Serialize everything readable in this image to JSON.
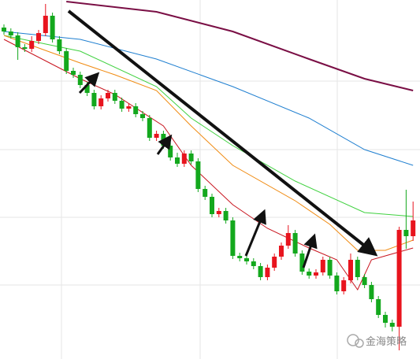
{
  "chart_data": {
    "type": "candlestick",
    "watermark": "金海策略",
    "ylim": [
      0,
      456
    ],
    "up_color": "#e8141e",
    "down_color": "#13a81d",
    "open": [
      421,
      416,
      411,
      396,
      394,
      404,
      414,
      436,
      406,
      391,
      366,
      361,
      348,
      338,
      321,
      331,
      338,
      328,
      318,
      321,
      311,
      306,
      281,
      286,
      271,
      256,
      248,
      261,
      251,
      216,
      206,
      184,
      188,
      176,
      131,
      128,
      124,
      118,
      104,
      116,
      130,
      144,
      160,
      134,
      111,
      106,
      110,
      126,
      106,
      86,
      100,
      126,
      104,
      94,
      76,
      56,
      46,
      41,
      164,
      156
    ],
    "high": [
      425,
      420,
      415,
      400,
      410,
      418,
      451,
      440,
      410,
      395,
      370,
      365,
      352,
      342,
      335,
      342,
      342,
      332,
      325,
      325,
      315,
      310,
      290,
      290,
      275,
      262,
      265,
      265,
      255,
      220,
      210,
      192,
      192,
      180,
      135,
      132,
      128,
      122,
      120,
      134,
      148,
      170,
      164,
      138,
      115,
      114,
      130,
      130,
      110,
      104,
      134,
      130,
      108,
      98,
      80,
      60,
      50,
      168,
      215,
      200
    ],
    "low": [
      412,
      407,
      380,
      390,
      390,
      400,
      410,
      402,
      387,
      362,
      357,
      344,
      334,
      317,
      317,
      327,
      324,
      314,
      314,
      307,
      302,
      277,
      277,
      267,
      252,
      244,
      244,
      247,
      212,
      202,
      180,
      180,
      172,
      127,
      124,
      120,
      114,
      100,
      100,
      112,
      126,
      140,
      130,
      107,
      102,
      102,
      106,
      102,
      82,
      82,
      96,
      100,
      90,
      72,
      52,
      40,
      35,
      11,
      140,
      150
    ],
    "close": [
      416,
      411,
      396,
      394,
      404,
      414,
      436,
      406,
      391,
      366,
      361,
      348,
      338,
      321,
      331,
      338,
      328,
      318,
      321,
      311,
      306,
      281,
      286,
      271,
      256,
      248,
      261,
      251,
      216,
      206,
      184,
      188,
      176,
      131,
      128,
      124,
      118,
      104,
      116,
      130,
      144,
      160,
      134,
      111,
      106,
      110,
      126,
      106,
      86,
      100,
      126,
      104,
      94,
      76,
      56,
      46,
      41,
      164,
      156,
      176
    ],
    "moving_averages": [
      {
        "color": "#7a0f45",
        "x": [
          9,
          22,
          33,
          44,
          52,
          59
        ],
        "values": [
          454,
          441,
          416,
          381,
          356,
          341
        ]
      },
      {
        "color": "#1f7fd0",
        "x": [
          0,
          11,
          22,
          33,
          44,
          52,
          59
        ],
        "values": [
          416,
          406,
          381,
          346,
          306,
          266,
          246
        ]
      },
      {
        "color": "#3fd13f",
        "x": [
          0,
          11,
          22,
          27,
          33,
          42,
          52,
          59
        ],
        "values": [
          411,
          391,
          346,
          306,
          271,
          226,
          186,
          181
        ]
      },
      {
        "color": "#f08a10",
        "x": [
          0,
          11,
          16,
          22,
          27,
          33,
          42,
          47,
          51,
          55,
          59
        ],
        "values": [
          411,
          376,
          361,
          341,
          296,
          246,
          201,
          171,
          138,
          138,
          151
        ]
      },
      {
        "color": "#c8141e",
        "x": [
          0,
          11,
          16,
          23,
          27,
          33,
          38,
          44,
          48,
          51,
          53,
          59
        ],
        "values": [
          406,
          356,
          336,
          296,
          246,
          196,
          166,
          141,
          126,
          88,
          126,
          141
        ]
      }
    ]
  }
}
